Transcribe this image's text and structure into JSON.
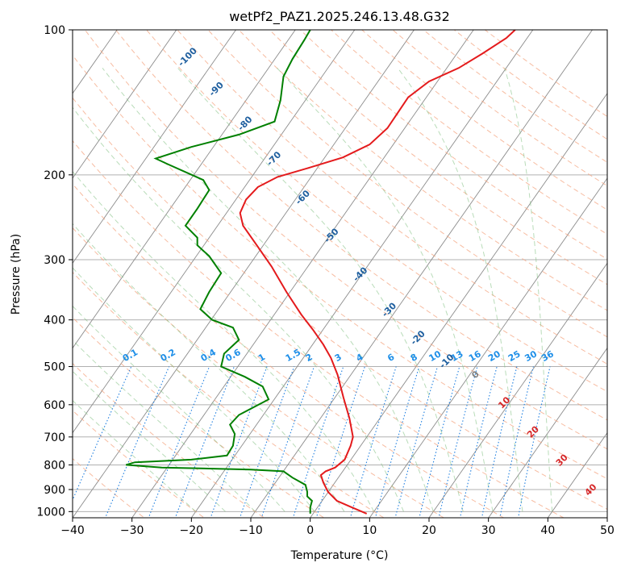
{
  "chart_data": {
    "type": "line",
    "title": "wetPf2_PAZ1.2025.246.13.48.G32",
    "xlabel": "Temperature (°C)",
    "ylabel": "Pressure (hPa)",
    "xlim": [
      -40,
      50
    ],
    "ylim": [
      1030,
      100
    ],
    "y_scale": "log",
    "x_ticks": [
      -40,
      -30,
      -20,
      -10,
      0,
      10,
      20,
      30,
      40,
      50
    ],
    "x_tick_labels": [
      "−40",
      "−30",
      "−20",
      "−10",
      "0",
      "10",
      "20",
      "30",
      "40",
      "50"
    ],
    "y_ticks": [
      100,
      200,
      300,
      400,
      500,
      600,
      700,
      800,
      900,
      1000
    ],
    "y_tick_labels": [
      "100",
      "200",
      "300",
      "400",
      "500",
      "600",
      "700",
      "800",
      "900",
      "1000"
    ],
    "grid": true,
    "series": [
      {
        "color": "#e41a1c",
        "points": [
          [
            9.5,
            1010
          ],
          [
            7,
            980
          ],
          [
            4.5,
            950
          ],
          [
            3,
            910
          ],
          [
            2.2,
            870
          ],
          [
            1.8,
            840
          ],
          [
            2.6,
            825
          ],
          [
            4.2,
            810
          ],
          [
            5.8,
            780
          ],
          [
            6.8,
            730
          ],
          [
            7.2,
            700
          ],
          [
            6.6,
            640
          ],
          [
            5.6,
            580
          ],
          [
            4.6,
            520
          ],
          [
            3.5,
            480
          ],
          [
            2.2,
            450
          ],
          [
            0.5,
            420
          ],
          [
            -1.5,
            390
          ],
          [
            -4,
            350
          ],
          [
            -6.5,
            310
          ],
          [
            -9,
            280
          ],
          [
            -11.3,
            255
          ],
          [
            -11.8,
            240
          ],
          [
            -10.8,
            225
          ],
          [
            -8.8,
            212
          ],
          [
            -5.5,
            202
          ],
          [
            0,
            193
          ],
          [
            5.5,
            184
          ],
          [
            10,
            173
          ],
          [
            13,
            160
          ],
          [
            15,
            147
          ],
          [
            16.5,
            138
          ],
          [
            20,
            128
          ],
          [
            25,
            120
          ],
          [
            29,
            112
          ],
          [
            33,
            104
          ],
          [
            34.5,
            100
          ]
        ]
      },
      {
        "color": "#008000",
        "points": [
          [
            0,
            1010
          ],
          [
            0,
            980
          ],
          [
            0.3,
            950
          ],
          [
            -0.5,
            930
          ],
          [
            -0.5,
            910
          ],
          [
            -0.8,
            880
          ],
          [
            -3,
            850
          ],
          [
            -4.5,
            825
          ],
          [
            -10,
            818
          ],
          [
            -25,
            810
          ],
          [
            -31,
            800
          ],
          [
            -29.5,
            790
          ],
          [
            -20,
            780
          ],
          [
            -14,
            765
          ],
          [
            -13,
            730
          ],
          [
            -12.7,
            690
          ],
          [
            -13.5,
            660
          ],
          [
            -12,
            630
          ],
          [
            -7,
            585
          ],
          [
            -8,
            550
          ],
          [
            -11,
            525
          ],
          [
            -15,
            500
          ],
          [
            -14.5,
            470
          ],
          [
            -12,
            440
          ],
          [
            -13,
            415
          ],
          [
            -16.5,
            400
          ],
          [
            -18.5,
            380
          ],
          [
            -17,
            350
          ],
          [
            -15,
            320
          ],
          [
            -17,
            295
          ],
          [
            -19,
            280
          ],
          [
            -19,
            270
          ],
          [
            -21,
            255
          ],
          [
            -19,
            235
          ],
          [
            -17,
            215
          ],
          [
            -18,
            205
          ],
          [
            -24,
            190
          ],
          [
            -26,
            185
          ],
          [
            -20,
            175
          ],
          [
            -12,
            165
          ],
          [
            -6,
            155
          ],
          [
            -5,
            140
          ],
          [
            -4.5,
            125
          ],
          [
            -3,
            115
          ],
          [
            -1,
            105
          ],
          [
            0,
            100
          ]
        ]
      }
    ],
    "mixing_ratio_labels": [
      "0.1",
      "0.2",
      "0.4",
      "0.6",
      "1",
      "1.5",
      "2",
      "3",
      "4",
      "6",
      "8",
      "10",
      "13",
      "16",
      "20",
      "25",
      "30",
      "36"
    ],
    "theta_e_labels": [
      "-100",
      "-90",
      "-80",
      "-70",
      "-60",
      "-50",
      "-40",
      "-30",
      "-20",
      "-10",
      "0",
      "10",
      "20",
      "30",
      "40"
    ],
    "colors": {
      "temperature": "#e41a1c",
      "dewpoint": "#008000",
      "dry_adiabat": "#f4a582",
      "moist_adiabat": "#7fbf7f",
      "mixing_ratio": "#1f7fe0",
      "isotherm": "#8c8c8c"
    }
  }
}
